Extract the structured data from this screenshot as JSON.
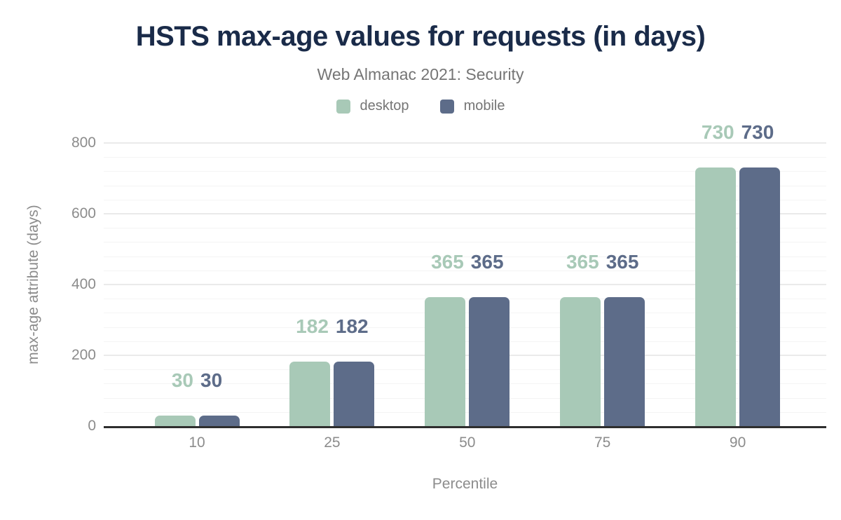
{
  "header": {
    "title": "HSTS max-age values for requests (in days)",
    "subtitle": "Web Almanac 2021: Security"
  },
  "legend": [
    {
      "label": "desktop",
      "color": "#a8c9b7"
    },
    {
      "label": "mobile",
      "color": "#5d6c89"
    }
  ],
  "colors": {
    "title": "#1a2b49",
    "subtitle": "#757575",
    "tick_text": "#8c8c8c",
    "desktop": "#a8c9b7",
    "mobile": "#5d6c89",
    "axis_line": "#2e2e2e",
    "grid_major": "#eaeaea",
    "grid_minor": "#f4f4f4",
    "background": "#ffffff"
  },
  "chart_data": {
    "type": "bar",
    "title": "HSTS max-age values for requests (in days)",
    "subtitle": "Web Almanac 2021: Security",
    "categories": [
      "10",
      "25",
      "50",
      "75",
      "90"
    ],
    "series": [
      {
        "name": "desktop",
        "color": "#a8c9b7",
        "values": [
          30,
          182,
          365,
          365,
          730
        ]
      },
      {
        "name": "mobile",
        "color": "#5d6c89",
        "values": [
          30,
          182,
          365,
          365,
          730
        ]
      }
    ],
    "xlabel": "Percentile",
    "ylabel": "max-age attribute (days)",
    "ylim": [
      0,
      800
    ],
    "yticks": [
      0,
      200,
      400,
      600,
      800
    ],
    "minor_grid_step": 40,
    "grid": true,
    "legend_position": "top",
    "data_labels": true
  }
}
